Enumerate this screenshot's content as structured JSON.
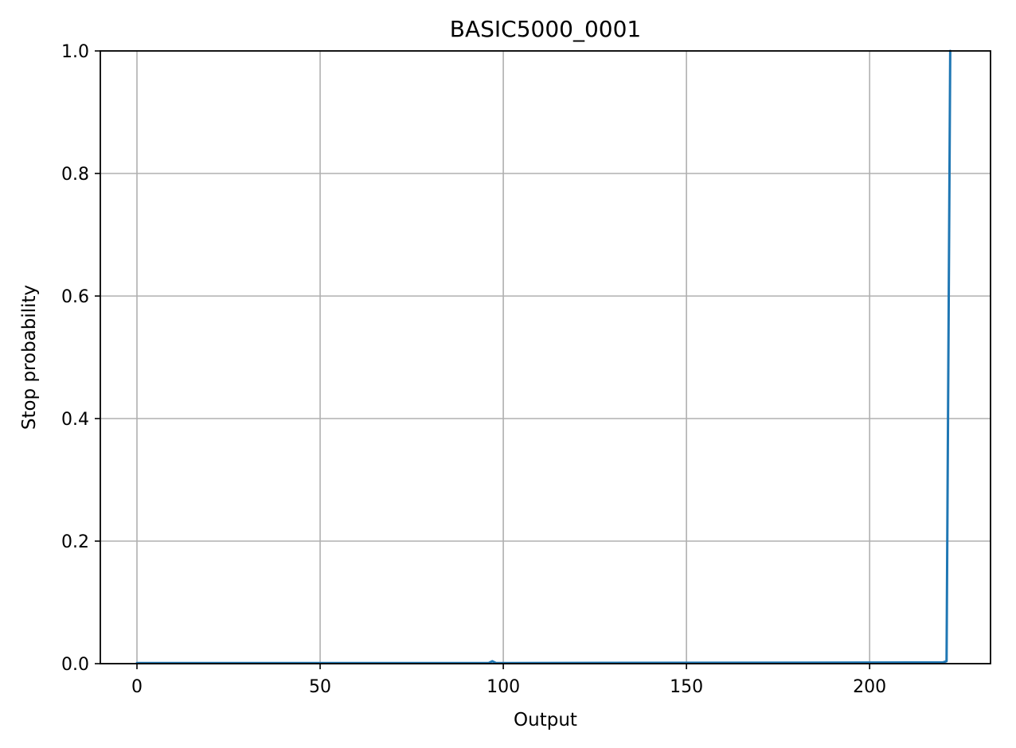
{
  "chart_data": {
    "type": "line",
    "title": "BASIC5000_0001",
    "xlabel": "Output",
    "ylabel": "Stop probability",
    "xlim": [
      -10,
      233
    ],
    "ylim": [
      0.0,
      1.0
    ],
    "xticks": [
      0,
      50,
      100,
      150,
      200
    ],
    "xtick_labels": [
      "0",
      "50",
      "100",
      "150",
      "200"
    ],
    "yticks": [
      0.0,
      0.2,
      0.4,
      0.6,
      0.8,
      1.0
    ],
    "ytick_labels": [
      "0.0",
      "0.2",
      "0.4",
      "0.6",
      "0.8",
      "1.0"
    ],
    "grid": true,
    "series": [
      {
        "color": "#1f77b4",
        "x": [
          0,
          96,
          97,
          98,
          220,
          221,
          222
        ],
        "y": [
          0.001,
          0.001,
          0.004,
          0.001,
          0.002,
          0.004,
          1.0
        ]
      }
    ]
  }
}
